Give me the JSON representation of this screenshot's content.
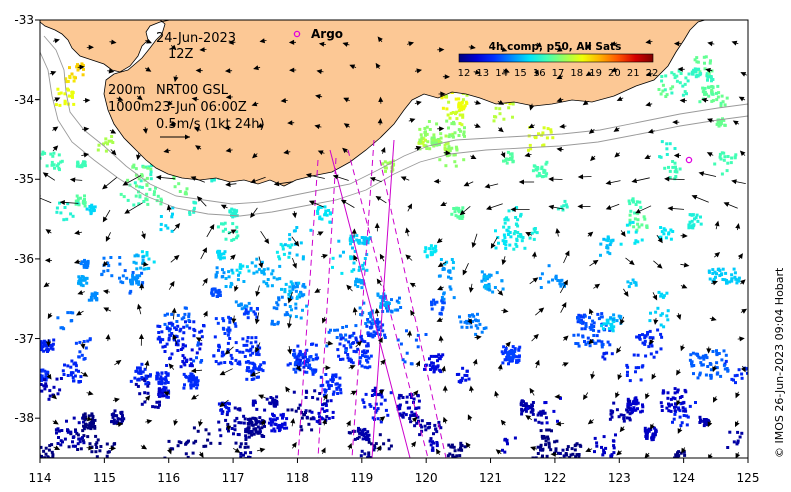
{
  "map": {
    "lon_range": [
      114,
      125
    ],
    "lat_range": [
      -38.5,
      -33
    ],
    "lon_ticks": [
      "114",
      "115",
      "116",
      "117",
      "118",
      "119",
      "120",
      "121",
      "122",
      "123",
      "124",
      "125"
    ],
    "lat_ticks": [
      "-33",
      "-34",
      "-35",
      "-36",
      "-37",
      "-38"
    ],
    "date_line": "24-Jun-2023",
    "time_line": "12Z",
    "contour_200": "200m",
    "contour_1000": "1000m",
    "product": "NRT00 GSL",
    "product_time": "23-Jun 06:00Z",
    "scale_label": "0.5m/s (1kt 24h)",
    "argo_label": "Argo",
    "credit": "© IMOS 26-Jun-2023 09:04 Hobart",
    "land_color": "#fcc895",
    "argo_color": "#e000e0",
    "track_color": "#cc00cc"
  },
  "colorbar": {
    "title": "4h comp, p50, All Sats",
    "labels": [
      "12",
      "13",
      "14",
      "15",
      "16",
      "17",
      "18",
      "19",
      "20",
      "21",
      "22"
    ],
    "colors": [
      "#00007f",
      "#0000d6",
      "#0030ff",
      "#008cff",
      "#00e4f8",
      "#44ffb2",
      "#9cff5a",
      "#f0ff07",
      "#ffb000",
      "#ff5600",
      "#d60000",
      "#800000"
    ]
  }
}
